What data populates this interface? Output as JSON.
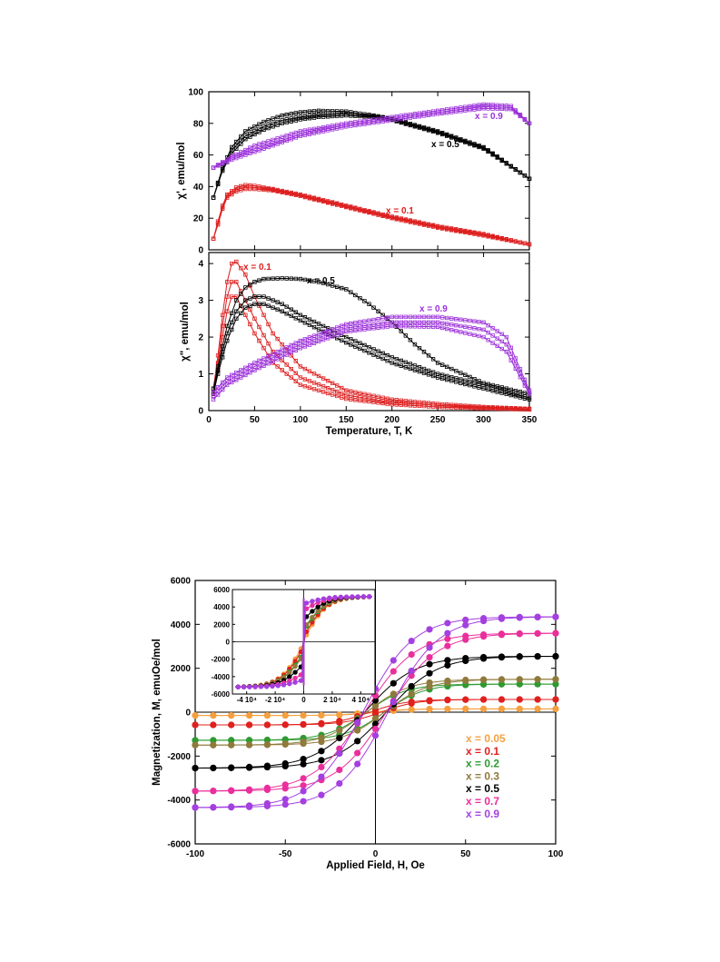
{
  "chart_data": [
    {
      "type": "line",
      "panel": "top",
      "xlabel": "",
      "ylabel": "χ', emu/mol",
      "xlim": [
        0,
        350
      ],
      "ylim": [
        0,
        100
      ],
      "yticks": [
        0,
        20,
        40,
        60,
        80,
        100
      ],
      "annotations": [
        "x = 0.9",
        "x = 0.5",
        "x = 0.1"
      ],
      "series": [
        {
          "name": "x = 0.5",
          "label": "x = 0.5",
          "color": "#000000",
          "curves": [
            {
              "x": [
                5,
                15,
                25,
                40,
                60,
                80,
                100,
                120,
                150,
                180,
                200,
                250,
                300,
                350
              ],
              "y": [
                33,
                52,
                65,
                75,
                81,
                85,
                87,
                88,
                87.5,
                85,
                83,
                75,
                65,
                45
              ]
            },
            {
              "x": [
                5,
                15,
                25,
                40,
                60,
                80,
                100,
                120,
                150,
                180,
                200,
                250,
                300,
                350
              ],
              "y": [
                33,
                51,
                63,
                72,
                78,
                82,
                84,
                85.5,
                86,
                84.5,
                82.5,
                74.5,
                64.5,
                45
              ]
            },
            {
              "x": [
                5,
                15,
                25,
                40,
                60,
                80,
                100,
                120,
                150,
                180,
                200,
                250,
                300,
                350
              ],
              "y": [
                33,
                50,
                61,
                70,
                76,
                80,
                82.5,
                84,
                85,
                84,
                82,
                74,
                64,
                45
              ]
            }
          ]
        },
        {
          "name": "x = 0.9",
          "label": "x = 0.9",
          "color": "#9b30d9",
          "curves": [
            {
              "x": [
                5,
                25,
                50,
                100,
                150,
                200,
                250,
                300,
                330,
                350
              ],
              "y": [
                52,
                59,
                66,
                75,
                80,
                84,
                88,
                92,
                91,
                80
              ]
            },
            {
              "x": [
                5,
                25,
                50,
                100,
                150,
                200,
                250,
                300,
                330,
                350
              ],
              "y": [
                52,
                58,
                64,
                73,
                79,
                83,
                87,
                90.5,
                90,
                80
              ]
            },
            {
              "x": [
                5,
                25,
                50,
                100,
                150,
                200,
                250,
                300,
                330,
                350
              ],
              "y": [
                52,
                57,
                62,
                72,
                78,
                82,
                86,
                89.5,
                89,
                80
              ]
            }
          ]
        },
        {
          "name": "x = 0.1",
          "label": "x = 0.1",
          "color": "#dd1e1e",
          "curves": [
            {
              "x": [
                5,
                10,
                15,
                20,
                30,
                40,
                50,
                70,
                100,
                150,
                200,
                250,
                300,
                350
              ],
              "y": [
                7,
                18,
                28,
                35,
                39.5,
                41,
                40.5,
                38.5,
                35,
                28,
                21,
                15,
                10,
                3.5
              ]
            },
            {
              "x": [
                5,
                10,
                15,
                20,
                30,
                40,
                50,
                70,
                100,
                150,
                200,
                250,
                300,
                350
              ],
              "y": [
                7,
                17,
                27,
                34,
                38,
                39.5,
                39.5,
                38,
                34.5,
                27.5,
                20.5,
                14.5,
                9.5,
                3.5
              ]
            },
            {
              "x": [
                5,
                10,
                15,
                20,
                30,
                40,
                50,
                70,
                100,
                150,
                200,
                250,
                300,
                350
              ],
              "y": [
                7,
                16,
                26,
                33,
                37,
                38.5,
                38.5,
                37.5,
                34,
                27,
                20,
                14,
                9,
                3.5
              ]
            }
          ]
        }
      ]
    },
    {
      "type": "line",
      "panel": "bottom",
      "xlabel": "Temperature, T, K",
      "ylabel": "χ\", emu/mol",
      "xlim": [
        0,
        350
      ],
      "ylim": [
        0,
        4.3
      ],
      "xticks": [
        0,
        50,
        100,
        150,
        200,
        250,
        300,
        350
      ],
      "yticks": [
        0,
        1,
        2,
        3,
        4
      ],
      "annotations": [
        "x = 0.1",
        "x = 0.5",
        "x = 0.9"
      ],
      "series": [
        {
          "name": "x = 0.1",
          "label": "x = 0.1",
          "color": "#dd1e1e",
          "curves": [
            {
              "x": [
                5,
                10,
                15,
                20,
                25,
                30,
                40,
                50,
                70,
                100,
                150,
                200,
                250,
                300,
                350
              ],
              "y": [
                0.6,
                1.5,
                2.6,
                3.5,
                4.0,
                4.05,
                3.7,
                3.1,
                2.1,
                1.2,
                0.55,
                0.3,
                0.18,
                0.1,
                0.05
              ]
            },
            {
              "x": [
                5,
                10,
                15,
                20,
                25,
                30,
                40,
                50,
                70,
                100,
                150,
                200,
                250,
                300,
                350
              ],
              "y": [
                0.5,
                1.3,
                2.3,
                3.1,
                3.5,
                3.5,
                3.0,
                2.5,
                1.6,
                0.9,
                0.42,
                0.23,
                0.14,
                0.08,
                0.04
              ]
            },
            {
              "x": [
                5,
                10,
                15,
                20,
                25,
                30,
                40,
                50,
                70,
                100,
                150,
                200,
                250,
                300,
                350
              ],
              "y": [
                0.4,
                1.1,
                2.0,
                2.7,
                3.1,
                3.1,
                2.6,
                2.1,
                1.3,
                0.7,
                0.32,
                0.17,
                0.1,
                0.06,
                0.03
              ]
            }
          ]
        },
        {
          "name": "x = 0.5",
          "label": "x = 0.5",
          "color": "#000000",
          "curves": [
            {
              "x": [
                5,
                10,
                20,
                30,
                40,
                50,
                60,
                80,
                100,
                120,
                150,
                175,
                200,
                225,
                250,
                300,
                350
              ],
              "y": [
                0.6,
                1.2,
                2.3,
                3.0,
                3.35,
                3.5,
                3.58,
                3.6,
                3.58,
                3.5,
                3.3,
                2.9,
                2.4,
                1.8,
                1.3,
                0.75,
                0.45
              ]
            },
            {
              "x": [
                5,
                10,
                20,
                30,
                40,
                50,
                60,
                80,
                100,
                150,
                200,
                250,
                300,
                350
              ],
              "y": [
                0.5,
                1.1,
                2.1,
                2.7,
                3.0,
                3.1,
                3.1,
                2.9,
                2.6,
                2.0,
                1.45,
                1.0,
                0.7,
                0.35
              ]
            },
            {
              "x": [
                5,
                10,
                20,
                30,
                40,
                50,
                60,
                80,
                100,
                150,
                200,
                250,
                300,
                350
              ],
              "y": [
                0.45,
                1.0,
                1.9,
                2.5,
                2.8,
                2.9,
                2.9,
                2.7,
                2.45,
                1.85,
                1.3,
                0.9,
                0.6,
                0.3
              ]
            }
          ]
        },
        {
          "name": "x = 0.9",
          "label": "x = 0.9",
          "color": "#9b30d9",
          "curves": [
            {
              "x": [
                5,
                20,
                50,
                100,
                150,
                200,
                250,
                300,
                325,
                350
              ],
              "y": [
                0.5,
                0.9,
                1.3,
                1.9,
                2.35,
                2.55,
                2.55,
                2.4,
                2.0,
                0.55
              ]
            },
            {
              "x": [
                5,
                20,
                50,
                100,
                150,
                200,
                250,
                300,
                325,
                350
              ],
              "y": [
                0.4,
                0.8,
                1.2,
                1.8,
                2.25,
                2.4,
                2.4,
                2.2,
                1.8,
                0.5
              ]
            },
            {
              "x": [
                5,
                20,
                50,
                100,
                150,
                200,
                250,
                300,
                325,
                350
              ],
              "y": [
                0.3,
                0.7,
                1.1,
                1.7,
                2.15,
                2.3,
                2.28,
                2.0,
                1.6,
                0.45
              ]
            }
          ]
        }
      ]
    },
    {
      "type": "line",
      "panel": "hysteresis",
      "xlabel": "Applied Field, H, Oe",
      "ylabel": "Magnetization, M, emuOe/mol",
      "xlim": [
        -100,
        100
      ],
      "ylim": [
        -6000,
        6000
      ],
      "xticks": [
        -100,
        -50,
        0,
        50,
        100
      ],
      "yticks": [
        -6000,
        -4000,
        -2000,
        0,
        2000,
        4000,
        6000
      ],
      "grid": false,
      "legend_position": "lower-right",
      "series": [
        {
          "name": "x = 0.05",
          "color": "#f5a040",
          "Ms": 150,
          "Hk": 18,
          "loop": 0.02
        },
        {
          "name": "x = 0.1",
          "color": "#e0201e",
          "Ms": 580,
          "Hk": 20,
          "loop": 0.03
        },
        {
          "name": "x = 0.2",
          "color": "#2e9a32",
          "Ms": 1280,
          "Hk": 22,
          "loop": 0.05
        },
        {
          "name": "x = 0.3",
          "color": "#8f7a3c",
          "Ms": 1500,
          "Hk": 24,
          "loop": 0.05
        },
        {
          "name": "x = 0.5",
          "color": "#000000",
          "Ms": 2550,
          "Hk": 28,
          "loop": 0.06
        },
        {
          "name": "x = 0.7",
          "color": "#ea2f9c",
          "Ms": 3600,
          "Hk": 28,
          "loop": 0.06
        },
        {
          "name": "x = 0.9",
          "color": "#a43fe0",
          "Ms": 4350,
          "Hk": 28,
          "loop": 0.07
        }
      ],
      "inset": {
        "xlim": [
          -50000,
          50000
        ],
        "ylim": [
          -6000,
          6000
        ],
        "xtick_labels": [
          {
            "x": -40000,
            "label": "-4 10⁴"
          },
          {
            "x": -20000,
            "label": "-2 10⁴"
          },
          {
            "x": 0,
            "label": "0"
          },
          {
            "x": 20000,
            "label": "2 10⁴"
          },
          {
            "x": 40000,
            "label": "4 10⁴"
          }
        ],
        "yticks": [
          -6000,
          -4000,
          -2000,
          0,
          2000,
          4000,
          6000
        ]
      }
    }
  ]
}
